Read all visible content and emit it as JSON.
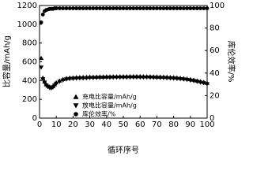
{
  "chart_data": {
    "type": "scatter",
    "x_label": "循环序号",
    "y_label": "比容量/mAh/g",
    "y2_label": "库伦效率/%",
    "x": [
      1,
      2,
      3,
      4,
      5,
      6,
      7,
      8,
      9,
      10,
      12,
      14,
      16,
      18,
      20,
      22,
      24,
      26,
      28,
      30,
      32,
      34,
      36,
      38,
      40,
      42,
      44,
      46,
      48,
      50,
      52,
      54,
      56,
      58,
      60,
      62,
      64,
      66,
      68,
      70,
      72,
      74,
      76,
      78,
      80,
      82,
      84,
      86,
      88,
      90,
      92,
      94,
      96,
      98,
      100
    ],
    "xlim": [
      0,
      100
    ],
    "xticks": [
      0,
      10,
      20,
      30,
      40,
      50,
      60,
      70,
      80,
      90,
      100
    ],
    "ylim": [
      0,
      1200
    ],
    "yticks": [
      0,
      200,
      400,
      600,
      800,
      1000,
      1200
    ],
    "y2lim": [
      0,
      100
    ],
    "y2ticks": [
      0,
      20,
      40,
      60,
      80,
      100
    ],
    "legend": "lower left",
    "series": [
      {
        "name": "充电比容量/mAh/g",
        "color": "#000000",
        "marker": "triangle-up",
        "values": [
          640,
          430,
          390,
          360,
          345,
          335,
          330,
          340,
          360,
          380,
          400,
          415,
          425,
          430,
          432,
          435,
          436,
          437,
          438,
          440,
          440,
          441,
          442,
          442,
          443,
          443,
          444,
          444,
          445,
          445,
          445,
          446,
          446,
          446,
          446,
          445,
          445,
          444,
          443,
          442,
          441,
          440,
          438,
          436,
          434,
          431,
          428,
          424,
          420,
          414,
          408,
          400,
          392,
          384,
          375
        ]
      },
      {
        "name": "放电比容量/mAh/g",
        "color": "#000000",
        "marker": "triangle-down",
        "values": [
          540,
          415,
          378,
          348,
          333,
          323,
          318,
          328,
          348,
          368,
          388,
          403,
          413,
          418,
          420,
          423,
          424,
          425,
          426,
          428,
          428,
          429,
          430,
          430,
          431,
          431,
          432,
          432,
          433,
          433,
          433,
          434,
          434,
          434,
          434,
          433,
          433,
          432,
          431,
          430,
          429,
          428,
          426,
          424,
          422,
          419,
          416,
          412,
          408,
          402,
          396,
          388,
          380,
          372,
          363
        ]
      },
      {
        "name": "库伦效率/%",
        "color": "#000000",
        "marker": "circle",
        "axis": "y2",
        "values": [
          85,
          92,
          95,
          96,
          96.5,
          97,
          97,
          97,
          97.5,
          97.5,
          97.5,
          97.5,
          97.5,
          97.5,
          97.5,
          97.5,
          97.5,
          97.5,
          97.5,
          97.5,
          97.5,
          97.5,
          97.5,
          97.5,
          97.5,
          97.5,
          97.5,
          97.5,
          97.5,
          97.5,
          97.5,
          97.5,
          97.5,
          97.5,
          97.5,
          97.5,
          97.5,
          97.5,
          97.5,
          97.5,
          97.5,
          97.5,
          97.5,
          97.5,
          97.5,
          97.5,
          97.5,
          97.5,
          97.5,
          97.5,
          97.5,
          97.5,
          97.5,
          97.5,
          97.5
        ]
      }
    ]
  }
}
